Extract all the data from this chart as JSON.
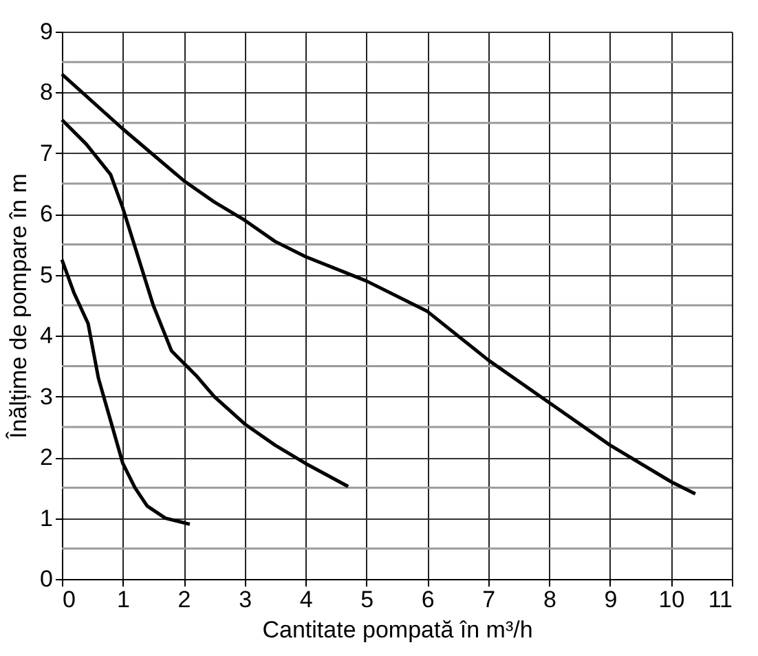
{
  "chart_data": {
    "type": "line",
    "xlabel": "Cantitate pompată în m³/h",
    "ylabel": "Înălțime de pompare în m",
    "xlim": [
      0,
      11
    ],
    "ylim": [
      0,
      9
    ],
    "xticks": [
      0,
      1,
      2,
      3,
      4,
      5,
      6,
      7,
      8,
      9,
      10,
      11
    ],
    "yticks": [
      0,
      {
        "value": 0.5,
        "label": null
      },
      1,
      {
        "value": 1.5,
        "label": null
      },
      2,
      {
        "value": 2.5,
        "label": null
      },
      3,
      {
        "value": 3.5,
        "label": null
      },
      4,
      {
        "value": 4.5,
        "label": null
      },
      5,
      {
        "value": 5.5,
        "label": null
      },
      6,
      {
        "value": 6.5,
        "label": null
      },
      7,
      {
        "value": 7.5,
        "label": null
      },
      8,
      {
        "value": 8.5,
        "label": null
      },
      9
    ],
    "grid": true,
    "marker": "none",
    "line_style": "solid",
    "series": [
      {
        "color": "#000000",
        "x": [
          0,
          0.2,
          0.43,
          0.6,
          0.8,
          1.0,
          1.2,
          1.4,
          1.7,
          2.1
        ],
        "values": [
          5.25,
          4.7,
          4.2,
          3.3,
          2.6,
          1.9,
          1.5,
          1.2,
          1.0,
          0.9
        ]
      },
      {
        "color": "#000000",
        "x": [
          0,
          0.4,
          0.8,
          1.0,
          1.25,
          1.5,
          1.8,
          2.2,
          2.5,
          3,
          3.5,
          4,
          4.7
        ],
        "values": [
          7.55,
          7.15,
          6.65,
          6.1,
          5.3,
          4.5,
          3.75,
          3.35,
          3.0,
          2.55,
          2.2,
          1.9,
          1.52
        ]
      },
      {
        "color": "#000000",
        "x": [
          0,
          1,
          2,
          2.5,
          3,
          3.5,
          4,
          5,
          6,
          7,
          8,
          9,
          10,
          10.4
        ],
        "values": [
          8.3,
          7.4,
          6.55,
          6.2,
          5.9,
          5.55,
          5.3,
          4.9,
          4.4,
          3.6,
          2.9,
          2.2,
          1.6,
          1.4
        ]
      }
    ]
  }
}
